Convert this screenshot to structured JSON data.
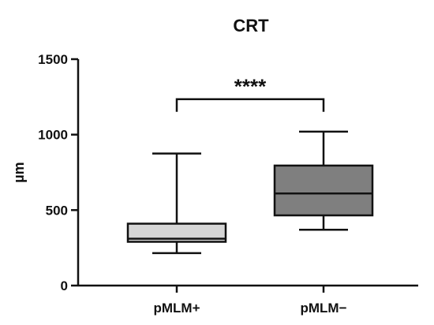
{
  "chart_data": {
    "type": "box",
    "title": "CRT",
    "xlabel": "",
    "ylabel": "µm",
    "ylim": [
      0,
      1500
    ],
    "yticks": [
      0,
      500,
      1000,
      1500
    ],
    "ytick_labels": [
      "0",
      "500",
      "1000",
      "1500"
    ],
    "categories": [
      "pMLM+",
      "pMLM−"
    ],
    "boxes": [
      {
        "category": "pMLM+",
        "min": 215,
        "q1": 290,
        "median": 310,
        "q3": 410,
        "max": 875,
        "fill": "#d6d6d6"
      },
      {
        "category": "pMLM−",
        "min": 370,
        "q1": 465,
        "median": 610,
        "q3": 795,
        "max": 1020,
        "fill": "#7f7f7f"
      }
    ],
    "significance": {
      "label": "****",
      "between": [
        "pMLM+",
        "pMLM−"
      ],
      "bracket_y": 1235
    }
  }
}
